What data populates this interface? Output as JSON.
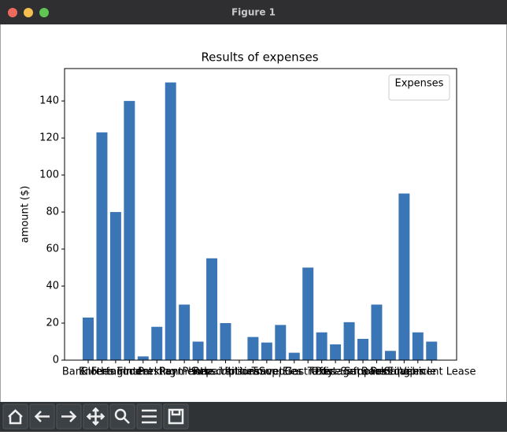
{
  "window": {
    "title": "Figure 1"
  },
  "chart_data": {
    "type": "bar",
    "title": "Results of expenses",
    "ylabel": "amount ($)",
    "categories": [
      "Bank Fees",
      "Clothing",
      "Entertainment",
      "Food",
      "Interest",
      "Parking",
      "Rent",
      "Payments",
      "Phone",
      "Repairs",
      "Subscriptions",
      "Utilities",
      "Insurance",
      "Travel",
      "Supplies",
      "Gas",
      "Electricity",
      "Taxes",
      "Postage",
      "Office Supplies",
      "Software",
      "Books",
      "Printing",
      "Salaries",
      "Vehicle",
      "Equipment Lease"
    ],
    "values": [
      23,
      123,
      80,
      140,
      2,
      18,
      150,
      30,
      10,
      55,
      20,
      0,
      12.5,
      9.5,
      19,
      4,
      50,
      15,
      8.5,
      20.5,
      11.5,
      30,
      5,
      90,
      15,
      10
    ],
    "color": "#3a75b5",
    "ylim": [
      0,
      157.5
    ],
    "yticks": [
      0,
      20,
      40,
      60,
      80,
      100,
      120,
      140
    ],
    "legend_title": "Expenses",
    "legend": "upper right"
  }
}
